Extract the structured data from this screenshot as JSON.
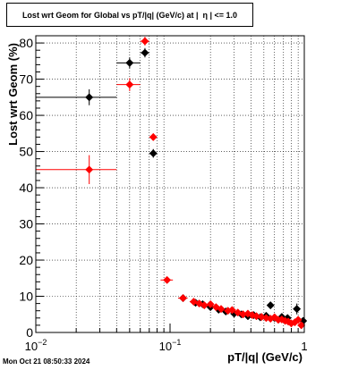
{
  "chart_data": {
    "type": "scatter",
    "title": "Lost wrt Geom for Global vs pT/|q| (GeV/c) at |  η | <= 1.0",
    "xlabel": "pT/|q| (GeV/c)",
    "ylabel": "Lost wrt Geom (%)",
    "xscale": "log",
    "xlim": [
      0.01,
      1.0
    ],
    "ylim": [
      0,
      82
    ],
    "grid": true,
    "x_ticks": [
      {
        "value": 0.01,
        "base": "10",
        "exp": "−2"
      },
      {
        "value": 0.1,
        "base": "10",
        "exp": "−1"
      },
      {
        "value": 1.0,
        "base": "1",
        "exp": ""
      }
    ],
    "y_ticks": [
      0,
      10,
      20,
      30,
      40,
      50,
      60,
      70,
      80
    ],
    "series": [
      {
        "color": "#000000",
        "points": [
          {
            "x": 0.025,
            "y": 65.0,
            "xerr": [
              0.01,
              0.04
            ],
            "yerr": 2.2
          },
          {
            "x": 0.05,
            "y": 74.5,
            "xerr": [
              0.04,
              0.06
            ],
            "yerr": 1.5
          },
          {
            "x": 0.065,
            "y": 77.3,
            "xerr": [
              0.06,
              0.07
            ],
            "yerr": 1.3
          },
          {
            "x": 0.075,
            "y": 49.5,
            "xerr": [
              0.07,
              0.08
            ],
            "yerr": 1.2
          },
          {
            "x": 0.125,
            "y": 9.5,
            "xerr": [
              0.115,
              0.135
            ],
            "yerr": 0.8
          },
          {
            "x": 0.155,
            "y": 8.2,
            "xerr": [
              0.145,
              0.165
            ],
            "yerr": 0.6
          },
          {
            "x": 0.175,
            "y": 7.8,
            "xerr": [
              0.165,
              0.185
            ],
            "yerr": 0.6
          },
          {
            "x": 0.2,
            "y": 7.0,
            "xerr": [
              0.19,
              0.21
            ],
            "yerr": 0.6
          },
          {
            "x": 0.23,
            "y": 6.3,
            "xerr": [
              0.22,
              0.24
            ],
            "yerr": 0.6
          },
          {
            "x": 0.26,
            "y": 5.8,
            "xerr": [
              0.25,
              0.27
            ],
            "yerr": 0.6
          },
          {
            "x": 0.3,
            "y": 5.2,
            "xerr": [
              0.29,
              0.31
            ],
            "yerr": 0.6
          },
          {
            "x": 0.34,
            "y": 5.0,
            "xerr": [
              0.33,
              0.35
            ],
            "yerr": 0.6
          },
          {
            "x": 0.38,
            "y": 4.5,
            "xerr": [
              0.37,
              0.39
            ],
            "yerr": 0.6
          },
          {
            "x": 0.42,
            "y": 4.8,
            "xerr": [
              0.41,
              0.43
            ],
            "yerr": 0.6
          },
          {
            "x": 0.47,
            "y": 4.2,
            "xerr": [
              0.46,
              0.48
            ],
            "yerr": 0.6
          },
          {
            "x": 0.52,
            "y": 4.6,
            "xerr": [
              0.51,
              0.53
            ],
            "yerr": 0.6
          },
          {
            "x": 0.56,
            "y": 7.5,
            "xerr": [
              0.55,
              0.57
            ],
            "yerr": 1.0
          },
          {
            "x": 0.6,
            "y": 4.0,
            "xerr": [
              0.59,
              0.61
            ],
            "yerr": 0.7
          },
          {
            "x": 0.68,
            "y": 4.3,
            "xerr": [
              0.67,
              0.69
            ],
            "yerr": 0.8
          },
          {
            "x": 0.75,
            "y": 4.0,
            "xerr": [
              0.74,
              0.76
            ],
            "yerr": 0.9
          },
          {
            "x": 0.88,
            "y": 6.5,
            "xerr": [
              0.87,
              0.89
            ],
            "yerr": 1.5
          },
          {
            "x": 0.98,
            "y": 3.2,
            "xerr": [
              0.97,
              0.99
            ],
            "yerr": 1.0
          }
        ]
      },
      {
        "color": "#ff0000",
        "points": [
          {
            "x": 0.025,
            "y": 45.0,
            "xerr": [
              0.01,
              0.04
            ],
            "yerr": 4.0
          },
          {
            "x": 0.05,
            "y": 68.5,
            "xerr": [
              0.04,
              0.06
            ],
            "yerr": 1.8
          },
          {
            "x": 0.065,
            "y": 80.5,
            "xerr": [
              0.06,
              0.07
            ],
            "yerr": 1.2
          },
          {
            "x": 0.075,
            "y": 54.0,
            "xerr": [
              0.07,
              0.08
            ],
            "yerr": 1.0
          },
          {
            "x": 0.095,
            "y": 14.5,
            "xerr": [
              0.085,
              0.105
            ],
            "yerr": 0.8
          },
          {
            "x": 0.125,
            "y": 9.5,
            "xerr": [
              0.115,
              0.135
            ],
            "yerr": 0.6
          },
          {
            "x": 0.15,
            "y": 8.5,
            "xerr": [
              0.14,
              0.16
            ],
            "yerr": 0.5
          },
          {
            "x": 0.165,
            "y": 8.0,
            "xerr": [
              0.155,
              0.175
            ],
            "yerr": 0.5
          },
          {
            "x": 0.18,
            "y": 7.5,
            "xerr": [
              0.17,
              0.19
            ],
            "yerr": 0.5
          },
          {
            "x": 0.2,
            "y": 7.8,
            "xerr": [
              0.19,
              0.21
            ],
            "yerr": 0.5
          },
          {
            "x": 0.22,
            "y": 7.0,
            "xerr": [
              0.21,
              0.23
            ],
            "yerr": 0.5
          },
          {
            "x": 0.24,
            "y": 6.5,
            "xerr": [
              0.23,
              0.25
            ],
            "yerr": 0.5
          },
          {
            "x": 0.27,
            "y": 6.0,
            "xerr": [
              0.26,
              0.28
            ],
            "yerr": 0.5
          },
          {
            "x": 0.29,
            "y": 6.2,
            "xerr": [
              0.28,
              0.3
            ],
            "yerr": 0.5
          },
          {
            "x": 0.32,
            "y": 5.5,
            "xerr": [
              0.31,
              0.33
            ],
            "yerr": 0.5
          },
          {
            "x": 0.35,
            "y": 5.0,
            "xerr": [
              0.34,
              0.36
            ],
            "yerr": 0.5
          },
          {
            "x": 0.38,
            "y": 5.2,
            "xerr": [
              0.37,
              0.39
            ],
            "yerr": 0.5
          },
          {
            "x": 0.41,
            "y": 4.8,
            "xerr": [
              0.4,
              0.42
            ],
            "yerr": 0.5
          },
          {
            "x": 0.44,
            "y": 4.5,
            "xerr": [
              0.43,
              0.45
            ],
            "yerr": 0.5
          },
          {
            "x": 0.48,
            "y": 4.3,
            "xerr": [
              0.47,
              0.49
            ],
            "yerr": 0.5
          },
          {
            "x": 0.52,
            "y": 4.0,
            "xerr": [
              0.51,
              0.53
            ],
            "yerr": 0.6
          },
          {
            "x": 0.56,
            "y": 3.8,
            "xerr": [
              0.55,
              0.57
            ],
            "yerr": 0.6
          },
          {
            "x": 0.6,
            "y": 4.2,
            "xerr": [
              0.59,
              0.61
            ],
            "yerr": 0.6
          },
          {
            "x": 0.64,
            "y": 3.5,
            "xerr": [
              0.63,
              0.65
            ],
            "yerr": 0.6
          },
          {
            "x": 0.68,
            "y": 3.6,
            "xerr": [
              0.67,
              0.69
            ],
            "yerr": 0.7
          },
          {
            "x": 0.72,
            "y": 3.2,
            "xerr": [
              0.71,
              0.73
            ],
            "yerr": 0.7
          },
          {
            "x": 0.76,
            "y": 3.0,
            "xerr": [
              0.75,
              0.77
            ],
            "yerr": 0.8
          },
          {
            "x": 0.8,
            "y": 2.5,
            "xerr": [
              0.79,
              0.81
            ],
            "yerr": 0.8
          },
          {
            "x": 0.85,
            "y": 2.8,
            "xerr": [
              0.84,
              0.86
            ],
            "yerr": 0.9
          },
          {
            "x": 0.9,
            "y": 3.5,
            "xerr": [
              0.89,
              0.91
            ],
            "yerr": 1.0
          },
          {
            "x": 0.95,
            "y": 2.0,
            "xerr": [
              0.94,
              0.96
            ],
            "yerr": 1.0
          }
        ]
      }
    ]
  },
  "footer": {
    "timestamp": "Mon Oct 21 08:50:33 2024"
  }
}
